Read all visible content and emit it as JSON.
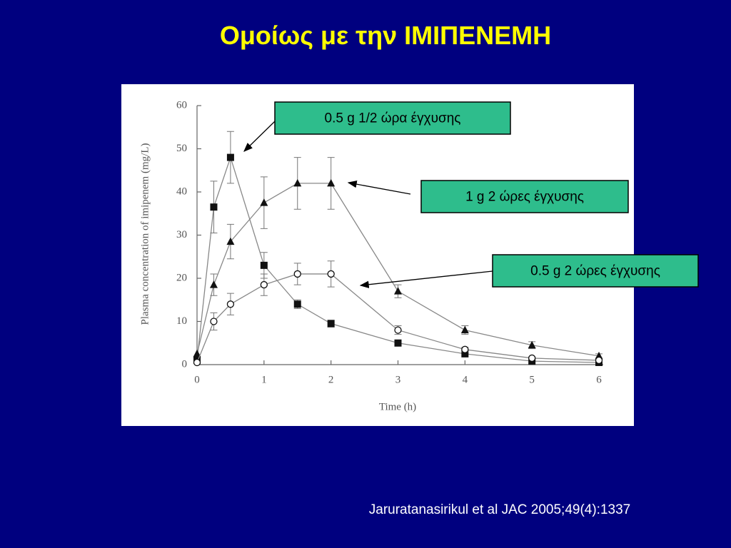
{
  "chart_data": {
    "type": "line",
    "title": "Ομοίως με την ΙΜΙΠΕΝΕΜΗ",
    "x_label": "Time (h)",
    "y_label": "Plasma concentration of imipenem (mg/L)",
    "source": "Jaruratanasirikul et al JAC 2005;49(4):1337",
    "x": [
      0,
      0.25,
      0.5,
      1,
      1.5,
      2,
      3,
      4,
      5,
      6
    ],
    "xlim": [
      0,
      6
    ],
    "xticks": [
      0,
      1,
      2,
      3,
      4,
      5,
      6
    ],
    "ylim": [
      0,
      60
    ],
    "yticks": [
      0,
      10,
      20,
      30,
      40,
      50,
      60
    ],
    "series": [
      {
        "name": "0.5 g  1/2 ώρα έγχυσης",
        "marker": "square",
        "color": "#111111",
        "values": [
          1,
          36.5,
          48,
          23,
          14,
          9.5,
          5,
          2.5,
          0.8,
          0.5
        ],
        "errors": [
          null,
          6,
          6,
          3,
          1,
          0.8,
          null,
          null,
          null,
          null
        ]
      },
      {
        "name": "1 g  2 ώρες έγχυσης",
        "marker": "triangle",
        "color": "#111111",
        "values": [
          2.5,
          18.5,
          28.5,
          37.5,
          42,
          42,
          17,
          8,
          4.5,
          2
        ],
        "errors": [
          null,
          2.5,
          4,
          6,
          6,
          6,
          1.5,
          1,
          0.8,
          0.5
        ]
      },
      {
        "name": "0.5 g  2 ώρες έγχυσης",
        "marker": "circle-open",
        "color": "#111111",
        "values": [
          0.5,
          10,
          14,
          18.5,
          21,
          21,
          8,
          3.5,
          1.5,
          1
        ],
        "errors": [
          null,
          2,
          2.5,
          2.5,
          2.5,
          3,
          1,
          0.5,
          0.3,
          0.3
        ]
      }
    ]
  }
}
